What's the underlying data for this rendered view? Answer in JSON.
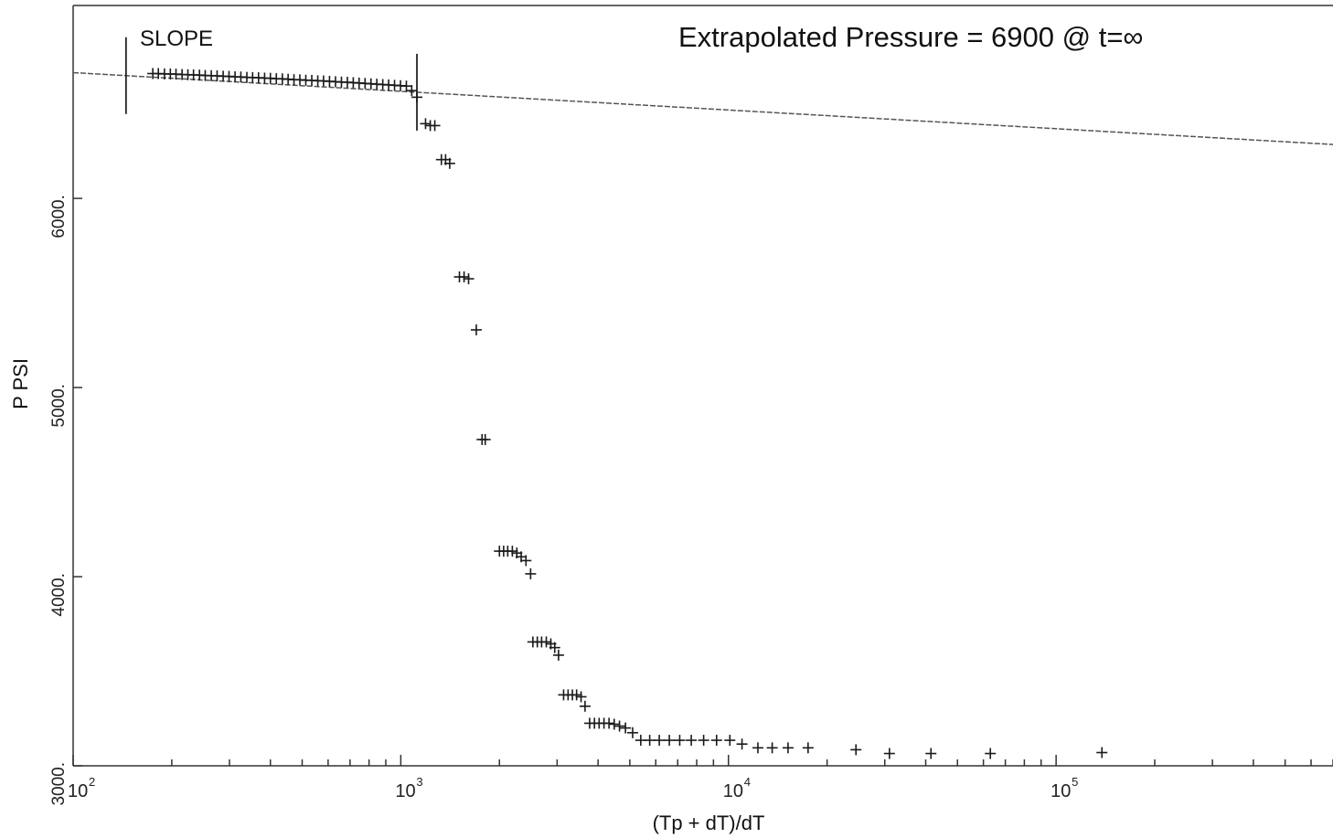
{
  "chart_data": {
    "type": "scatter",
    "title": "",
    "annotation": "Extrapolated Pressure = 6900 @ t=∞",
    "slope_label": "SLOPE",
    "xlabel": "(Tp + dT)/dT",
    "ylabel": "P PSI",
    "x_scale": "log",
    "xlim": [
      100,
      700000
    ],
    "ylim": [
      3000,
      7020
    ],
    "x_ticks": [
      {
        "value": 100,
        "base": "10",
        "exp": "2"
      },
      {
        "value": 1000,
        "base": "10",
        "exp": "3"
      },
      {
        "value": 10000,
        "base": "10",
        "exp": "4"
      },
      {
        "value": 100000,
        "base": "10",
        "exp": "5"
      }
    ],
    "y_ticks": [
      {
        "value": 3000,
        "label": "3000."
      },
      {
        "value": 4000,
        "label": "4000."
      },
      {
        "value": 5000,
        "label": "5000."
      },
      {
        "value": 6000,
        "label": "6000."
      }
    ],
    "grid": false,
    "slope_markers_x": [
      145,
      1120
    ],
    "regression_line": {
      "x": [
        100,
        700000
      ],
      "y": [
        6665,
        6285
      ]
    },
    "points": [
      {
        "x": 175,
        "y": 6660
      },
      {
        "x": 182,
        "y": 6660
      },
      {
        "x": 190,
        "y": 6658
      },
      {
        "x": 198,
        "y": 6658
      },
      {
        "x": 206,
        "y": 6657
      },
      {
        "x": 215,
        "y": 6655
      },
      {
        "x": 224,
        "y": 6654
      },
      {
        "x": 233,
        "y": 6653
      },
      {
        "x": 243,
        "y": 6652
      },
      {
        "x": 253,
        "y": 6650
      },
      {
        "x": 264,
        "y": 6649
      },
      {
        "x": 275,
        "y": 6648
      },
      {
        "x": 287,
        "y": 6646
      },
      {
        "x": 299,
        "y": 6645
      },
      {
        "x": 312,
        "y": 6643
      },
      {
        "x": 325,
        "y": 6642
      },
      {
        "x": 339,
        "y": 6640
      },
      {
        "x": 353,
        "y": 6639
      },
      {
        "x": 368,
        "y": 6638
      },
      {
        "x": 384,
        "y": 6636
      },
      {
        "x": 400,
        "y": 6635
      },
      {
        "x": 417,
        "y": 6633
      },
      {
        "x": 435,
        "y": 6632
      },
      {
        "x": 453,
        "y": 6630
      },
      {
        "x": 472,
        "y": 6628
      },
      {
        "x": 492,
        "y": 6627
      },
      {
        "x": 513,
        "y": 6625
      },
      {
        "x": 535,
        "y": 6624
      },
      {
        "x": 558,
        "y": 6622
      },
      {
        "x": 581,
        "y": 6621
      },
      {
        "x": 606,
        "y": 6619
      },
      {
        "x": 632,
        "y": 6617
      },
      {
        "x": 659,
        "y": 6615
      },
      {
        "x": 687,
        "y": 6614
      },
      {
        "x": 716,
        "y": 6612
      },
      {
        "x": 746,
        "y": 6610
      },
      {
        "x": 778,
        "y": 6608
      },
      {
        "x": 811,
        "y": 6606
      },
      {
        "x": 845,
        "y": 6604
      },
      {
        "x": 881,
        "y": 6602
      },
      {
        "x": 918,
        "y": 6600
      },
      {
        "x": 957,
        "y": 6598
      },
      {
        "x": 998,
        "y": 6596
      },
      {
        "x": 1040,
        "y": 6594
      },
      {
        "x": 1080,
        "y": 6570
      },
      {
        "x": 1120,
        "y": 6535
      },
      {
        "x": 1190,
        "y": 6395
      },
      {
        "x": 1230,
        "y": 6385
      },
      {
        "x": 1270,
        "y": 6385
      },
      {
        "x": 1330,
        "y": 6205
      },
      {
        "x": 1370,
        "y": 6205
      },
      {
        "x": 1410,
        "y": 6185
      },
      {
        "x": 1510,
        "y": 5585
      },
      {
        "x": 1560,
        "y": 5585
      },
      {
        "x": 1610,
        "y": 5575
      },
      {
        "x": 1700,
        "y": 5305
      },
      {
        "x": 1770,
        "y": 4725
      },
      {
        "x": 1810,
        "y": 4725
      },
      {
        "x": 2000,
        "y": 4135
      },
      {
        "x": 2060,
        "y": 4135
      },
      {
        "x": 2120,
        "y": 4135
      },
      {
        "x": 2190,
        "y": 4135
      },
      {
        "x": 2260,
        "y": 4125
      },
      {
        "x": 2330,
        "y": 4105
      },
      {
        "x": 2410,
        "y": 4085
      },
      {
        "x": 2490,
        "y": 4015
      },
      {
        "x": 2530,
        "y": 3655
      },
      {
        "x": 2610,
        "y": 3655
      },
      {
        "x": 2690,
        "y": 3655
      },
      {
        "x": 2780,
        "y": 3655
      },
      {
        "x": 2870,
        "y": 3645
      },
      {
        "x": 2950,
        "y": 3625
      },
      {
        "x": 3030,
        "y": 3585
      },
      {
        "x": 3140,
        "y": 3375
      },
      {
        "x": 3240,
        "y": 3375
      },
      {
        "x": 3340,
        "y": 3375
      },
      {
        "x": 3440,
        "y": 3375
      },
      {
        "x": 3550,
        "y": 3365
      },
      {
        "x": 3650,
        "y": 3315
      },
      {
        "x": 3770,
        "y": 3225
      },
      {
        "x": 3900,
        "y": 3225
      },
      {
        "x": 4030,
        "y": 3225
      },
      {
        "x": 4170,
        "y": 3225
      },
      {
        "x": 4320,
        "y": 3225
      },
      {
        "x": 4480,
        "y": 3220
      },
      {
        "x": 4650,
        "y": 3210
      },
      {
        "x": 4850,
        "y": 3200
      },
      {
        "x": 5100,
        "y": 3175
      },
      {
        "x": 5400,
        "y": 3135
      },
      {
        "x": 5750,
        "y": 3135
      },
      {
        "x": 6150,
        "y": 3135
      },
      {
        "x": 6600,
        "y": 3135
      },
      {
        "x": 7100,
        "y": 3135
      },
      {
        "x": 7700,
        "y": 3135
      },
      {
        "x": 8400,
        "y": 3135
      },
      {
        "x": 9200,
        "y": 3135
      },
      {
        "x": 10100,
        "y": 3135
      },
      {
        "x": 11000,
        "y": 3115
      },
      {
        "x": 12300,
        "y": 3095
      },
      {
        "x": 13600,
        "y": 3095
      },
      {
        "x": 15200,
        "y": 3095
      },
      {
        "x": 17500,
        "y": 3095
      },
      {
        "x": 24500,
        "y": 3085
      },
      {
        "x": 31000,
        "y": 3065
      },
      {
        "x": 41500,
        "y": 3065
      },
      {
        "x": 63000,
        "y": 3065
      },
      {
        "x": 138000,
        "y": 3070
      }
    ]
  }
}
